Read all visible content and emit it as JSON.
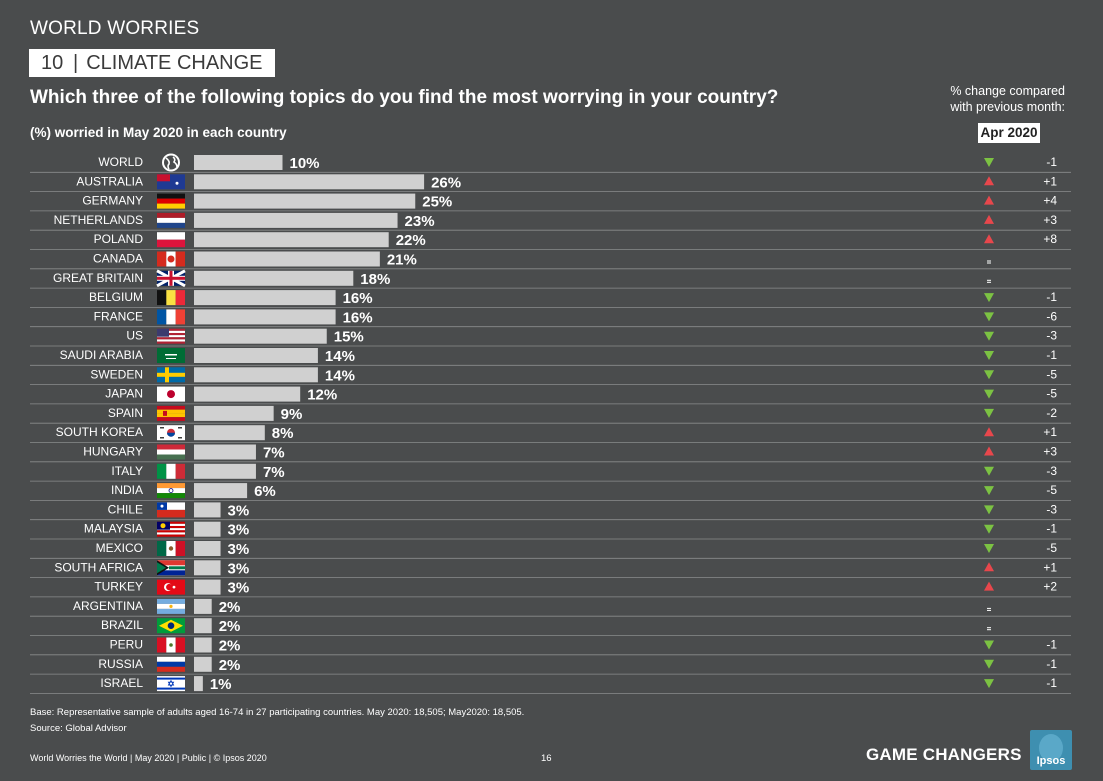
{
  "header": {
    "supertitle": "WORLD WORRIES",
    "section_number": "10",
    "section_title": "CLIMATE CHANGE",
    "question": "Which three of the following topics do you find the most worrying in your country?",
    "subtitle": "(%) worried in May 2020 in each country",
    "change_line1": "% change compared",
    "change_line2": "with previous month:",
    "change_month": "Apr 2020"
  },
  "colors": {
    "background": "#4a4c4d",
    "bar": "#d0d0d0",
    "up": "#e8474c",
    "down": "#7cc243"
  },
  "chart_data": {
    "type": "bar",
    "orientation": "horizontal",
    "categories": [
      "WORLD",
      "AUSTRALIA",
      "GERMANY",
      "NETHERLANDS",
      "POLAND",
      "CANADA",
      "GREAT BRITAIN",
      "BELGIUM",
      "FRANCE",
      "US",
      "SAUDI ARABIA",
      "SWEDEN",
      "JAPAN",
      "SPAIN",
      "SOUTH KOREA",
      "HUNGARY",
      "ITALY",
      "INDIA",
      "CHILE",
      "MALAYSIA",
      "MEXICO",
      "SOUTH AFRICA",
      "TURKEY",
      "ARGENTINA",
      "BRAZIL",
      "PERU",
      "RUSSIA",
      "ISRAEL"
    ],
    "values": [
      10,
      26,
      25,
      23,
      22,
      21,
      18,
      16,
      16,
      15,
      14,
      14,
      12,
      9,
      8,
      7,
      7,
      6,
      3,
      3,
      3,
      3,
      3,
      2,
      2,
      2,
      2,
      1
    ],
    "value_labels": [
      "10%",
      "26%",
      "25%",
      "23%",
      "22%",
      "21%",
      "18%",
      "16%",
      "16%",
      "15%",
      "14%",
      "14%",
      "12%",
      "9%",
      "8%",
      "7%",
      "7%",
      "6%",
      "3%",
      "3%",
      "3%",
      "3%",
      "3%",
      "2%",
      "2%",
      "2%",
      "2%",
      "1%"
    ],
    "changes": [
      "-1",
      "+1",
      "+4",
      "+3",
      "+8",
      "=",
      "=",
      "-1",
      "-6",
      "-3",
      "-1",
      "-5",
      "-5",
      "-2",
      "+1",
      "+3",
      "-3",
      "-5",
      "-3",
      "-1",
      "-5",
      "+1",
      "+2",
      "=",
      "=",
      "-1",
      "-1",
      "-1"
    ],
    "xlim": [
      0,
      30
    ],
    "grid": false
  },
  "footer": {
    "base": "Base: Representative sample of adults aged 16-74 in 27 participating countries. May 2020: 18,505; May2020: 18,505.",
    "source": "Source: Global Advisor",
    "left": "World Worries the World | May 2020 | Public | © Ipsos 2020",
    "page": "16",
    "brand": "GAME CHANGERS",
    "logo_text": "Ipsos"
  }
}
